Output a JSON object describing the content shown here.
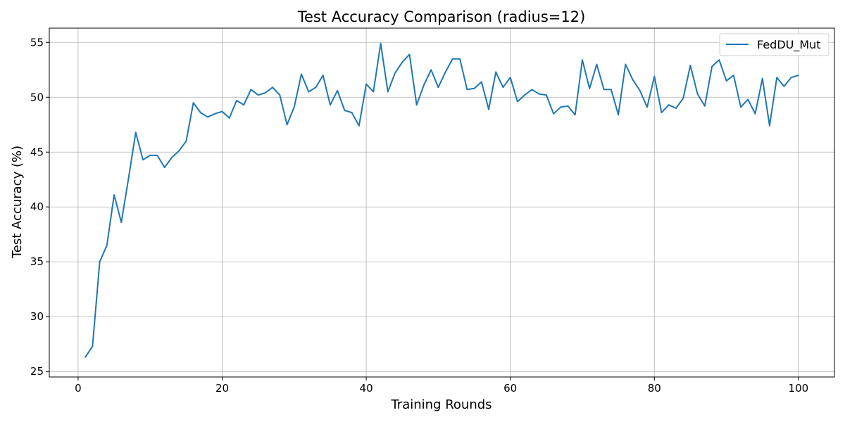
{
  "chart_data": {
    "type": "line",
    "title": "Test Accuracy Comparison (radius=12)",
    "xlabel": "Training Rounds",
    "ylabel": "Test Accuracy (%)",
    "xlim": [
      -4,
      105
    ],
    "ylim": [
      24.5,
      56.3
    ],
    "xticks": [
      0,
      20,
      40,
      60,
      80,
      100
    ],
    "yticks": [
      25,
      30,
      35,
      40,
      45,
      50,
      55
    ],
    "grid": true,
    "legend_position": "top-right",
    "series": [
      {
        "name": "FedDU_Mut",
        "color": "#1f77b4",
        "x": [
          1,
          2,
          3,
          4,
          5,
          6,
          7,
          8,
          9,
          10,
          11,
          12,
          13,
          14,
          15,
          16,
          17,
          18,
          19,
          20,
          21,
          22,
          23,
          24,
          25,
          26,
          27,
          28,
          29,
          30,
          31,
          32,
          33,
          34,
          35,
          36,
          37,
          38,
          39,
          40,
          41,
          42,
          43,
          44,
          45,
          46,
          47,
          48,
          49,
          50,
          51,
          52,
          53,
          54,
          55,
          56,
          57,
          58,
          59,
          60,
          61,
          62,
          63,
          64,
          65,
          66,
          67,
          68,
          69,
          70,
          71,
          72,
          73,
          74,
          75,
          76,
          77,
          78,
          79,
          80,
          81,
          82,
          83,
          84,
          85,
          86,
          87,
          88,
          89,
          90,
          91,
          92,
          93,
          94,
          95,
          96,
          97,
          98,
          99,
          100
        ],
        "y": [
          26.3,
          27.3,
          35.0,
          36.5,
          41.1,
          38.6,
          42.6,
          46.8,
          44.3,
          44.7,
          44.7,
          43.6,
          44.5,
          45.1,
          46.0,
          49.5,
          48.6,
          48.2,
          48.5,
          48.7,
          48.1,
          49.7,
          49.3,
          50.7,
          50.2,
          50.4,
          50.9,
          50.2,
          47.5,
          49.1,
          52.1,
          50.5,
          50.9,
          52.0,
          49.3,
          50.6,
          48.8,
          48.6,
          47.4,
          51.2,
          50.5,
          54.9,
          50.5,
          52.2,
          53.2,
          53.9,
          49.3,
          51.1,
          52.5,
          50.9,
          52.3,
          53.5,
          53.5,
          50.7,
          50.8,
          51.4,
          48.9,
          52.3,
          50.9,
          51.8,
          49.6,
          50.2,
          50.7,
          50.3,
          50.2,
          48.5,
          49.1,
          49.2,
          48.4,
          53.4,
          50.8,
          53.0,
          50.7,
          50.7,
          48.4,
          53.0,
          51.6,
          50.6,
          49.1,
          51.9,
          48.6,
          49.3,
          49.0,
          49.9,
          52.9,
          50.3,
          49.2,
          52.8,
          53.4,
          51.5,
          52.0,
          49.1,
          49.8,
          48.5,
          51.7,
          47.4,
          51.8,
          51.0,
          51.8,
          52.0
        ]
      }
    ]
  }
}
